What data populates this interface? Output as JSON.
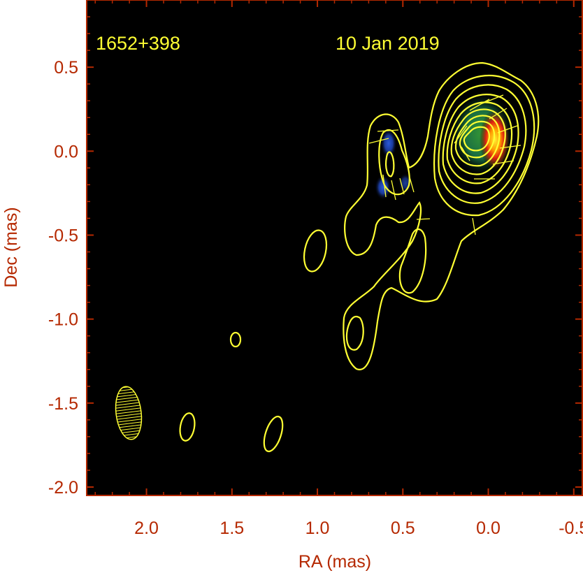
{
  "chart_data": {
    "type": "contour",
    "source_label": "1652+398",
    "epoch_label": "10 Jan 2019",
    "xlabel": "RA (mas)",
    "ylabel": "Dec (mas)",
    "xlim": [
      2.35,
      -0.55
    ],
    "ylim": [
      -2.05,
      0.9
    ],
    "x_ticks": [
      2.0,
      1.5,
      1.0,
      0.5,
      0.0,
      -0.5
    ],
    "x_tick_labels": [
      "2.0",
      "1.5",
      "1.0",
      "0.5",
      "0.0",
      "-0.5"
    ],
    "y_ticks": [
      0.5,
      0.0,
      -0.5,
      -1.0,
      -1.5,
      -2.0
    ],
    "y_tick_labels": [
      "0.5",
      "0.0",
      "-0.5",
      "-1.0",
      "-1.5",
      "-2.0"
    ],
    "colors": {
      "background": "#000000",
      "frame": "#b52800",
      "axis_text": "#b52800",
      "contour": "#ffff33",
      "annotation": "#ffff33"
    },
    "core": {
      "ra": 0.0,
      "dec": 0.02,
      "levels": 9
    },
    "components": [
      {
        "ra": 0.57,
        "dec": -0.1,
        "note": "jet knot"
      },
      {
        "ra": 0.38,
        "dec": -0.62,
        "note": "extended emission"
      },
      {
        "ra": 0.72,
        "dec": -1.12,
        "note": "extended emission"
      }
    ],
    "isolated_contours": [
      {
        "ra": 1.02,
        "dec": -0.6
      },
      {
        "ra": 1.48,
        "dec": -1.14
      },
      {
        "ra": 1.78,
        "dec": -1.66
      },
      {
        "ra": 1.25,
        "dec": -1.71
      }
    ],
    "beam": {
      "ra": 2.12,
      "dec": -1.6,
      "major_mas": 0.32,
      "minor_mas": 0.15,
      "pa_deg": -7
    }
  }
}
